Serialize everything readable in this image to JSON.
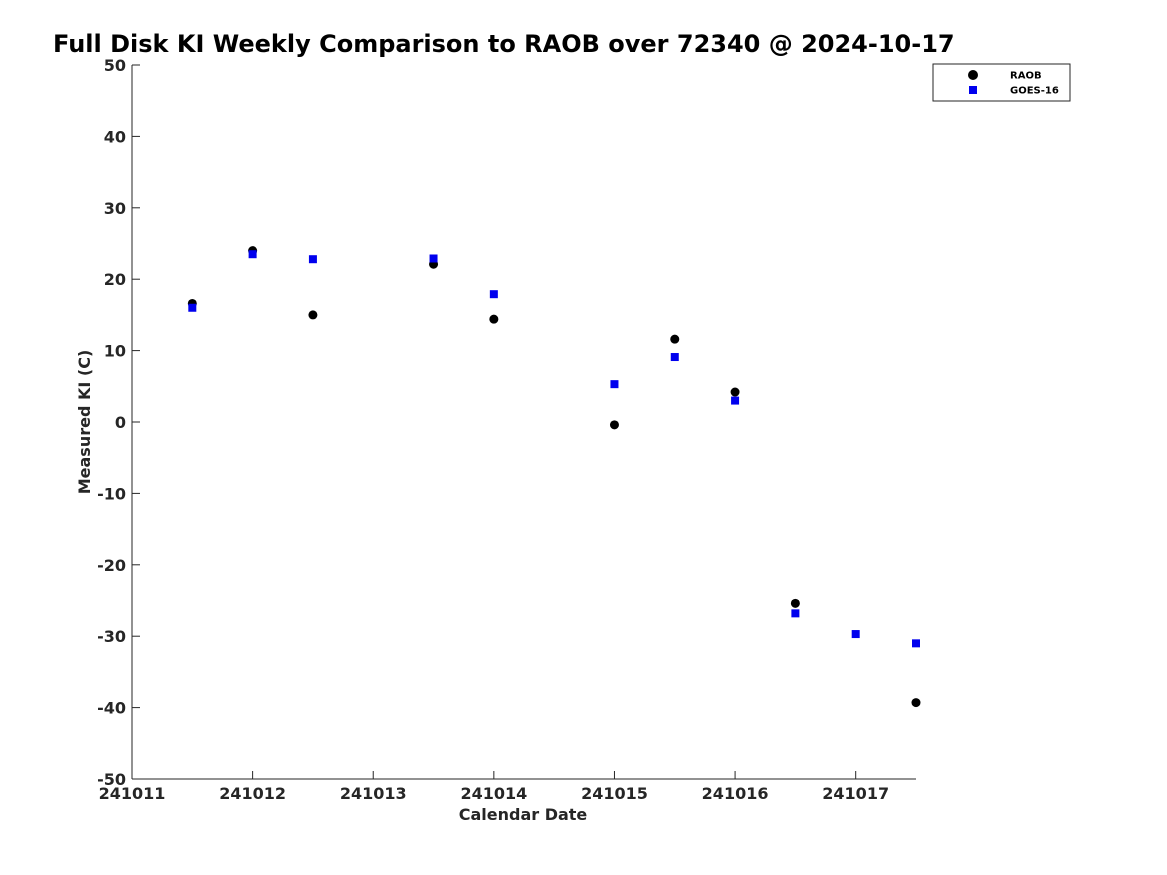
{
  "chart_data": {
    "type": "scatter",
    "title": "Full Disk KI Weekly Comparison to RAOB over 72340 @ 2024-10-17",
    "xlabel": "Calendar Date",
    "ylabel": "Measured KI (C)",
    "xlim": [
      241011,
      241017.5
    ],
    "ylim": [
      -50,
      50
    ],
    "x_ticks": [
      "241011",
      "241012",
      "241013",
      "241014",
      "241015",
      "241016",
      "241017"
    ],
    "y_ticks": [
      "50",
      "40",
      "30",
      "20",
      "10",
      "0",
      "-10",
      "-20",
      "-30",
      "-40",
      "-50"
    ],
    "grid": false,
    "legend_position": "top-right",
    "series": [
      {
        "name": "RAOB",
        "color": "#000000",
        "marker": "circle",
        "x": [
          241011.5,
          241012,
          241012.5,
          241013.5,
          241014,
          241015,
          241015.5,
          241016,
          241016.5,
          241017.5
        ],
        "y": [
          16.6,
          24.0,
          15.0,
          22.1,
          14.4,
          -0.4,
          11.6,
          4.2,
          -25.4,
          -39.3
        ]
      },
      {
        "name": "GOES-16",
        "color": "#0000ee",
        "marker": "square",
        "x": [
          241011.5,
          241012,
          241012.5,
          241013.5,
          241014,
          241015,
          241015.5,
          241016,
          241016.5,
          241017,
          241017.5
        ],
        "y": [
          16.0,
          23.5,
          22.8,
          22.9,
          17.9,
          5.3,
          9.1,
          3.0,
          -26.8,
          -29.7,
          -31.0
        ]
      }
    ]
  }
}
